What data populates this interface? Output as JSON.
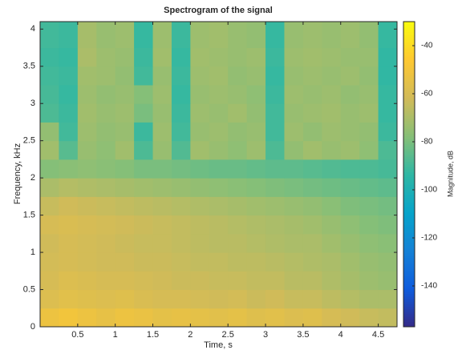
{
  "chart_data": {
    "type": "spectrogram",
    "title": "Spectrogram of the signal",
    "x_label": "Time, s",
    "y_label": "Frequency, kHz",
    "colorbar_label": "Magnitude, dB",
    "x": [
      0.125,
      0.375,
      0.625,
      0.875,
      1.125,
      1.375,
      1.625,
      1.875,
      2.125,
      2.375,
      2.625,
      2.875,
      3.125,
      3.375,
      3.625,
      3.875,
      4.125,
      4.375,
      4.625
    ],
    "y": [
      0.125,
      0.375,
      0.625,
      0.875,
      1.125,
      1.375,
      1.625,
      1.875,
      2.125,
      2.375,
      2.625,
      2.875,
      3.125,
      3.375,
      3.625,
      3.875
    ],
    "values": [
      [
        -52,
        -50,
        -52,
        -54,
        -52,
        -53,
        -55,
        -54,
        -55,
        -56,
        -55,
        -57,
        -56,
        -58,
        -57,
        -60,
        -62,
        -64,
        -65
      ],
      [
        -58,
        -56,
        -57,
        -58,
        -57,
        -59,
        -60,
        -60,
        -61,
        -62,
        -61,
        -63,
        -62,
        -64,
        -64,
        -66,
        -68,
        -70,
        -70
      ],
      [
        -60,
        -58,
        -59,
        -60,
        -60,
        -61,
        -62,
        -63,
        -63,
        -64,
        -64,
        -65,
        -65,
        -67,
        -67,
        -69,
        -71,
        -73,
        -74
      ],
      [
        -61,
        -60,
        -61,
        -62,
        -62,
        -63,
        -63,
        -64,
        -65,
        -65,
        -66,
        -66,
        -67,
        -68,
        -69,
        -70,
        -72,
        -74,
        -75
      ],
      [
        -62,
        -60,
        -61,
        -62,
        -63,
        -64,
        -64,
        -65,
        -66,
        -67,
        -67,
        -68,
        -69,
        -70,
        -70,
        -72,
        -74,
        -76,
        -77
      ],
      [
        -60,
        -59,
        -60,
        -61,
        -62,
        -63,
        -64,
        -65,
        -66,
        -67,
        -68,
        -69,
        -70,
        -71,
        -72,
        -74,
        -76,
        -78,
        -79
      ],
      [
        -64,
        -62,
        -63,
        -64,
        -65,
        -66,
        -67,
        -68,
        -69,
        -70,
        -71,
        -72,
        -73,
        -74,
        -75,
        -77,
        -79,
        -80,
        -81
      ],
      [
        -70,
        -68,
        -69,
        -70,
        -71,
        -72,
        -73,
        -74,
        -75,
        -76,
        -77,
        -78,
        -79,
        -80,
        -81,
        -82,
        -83,
        -84,
        -85
      ],
      [
        -78,
        -77,
        -76,
        -77,
        -78,
        -80,
        -80,
        -81,
        -82,
        -83,
        -83,
        -84,
        -85,
        -85,
        -86,
        -87,
        -88,
        -88,
        -89
      ],
      [
        -72,
        -86,
        -74,
        -76,
        -72,
        -88,
        -74,
        -87,
        -72,
        -74,
        -76,
        -73,
        -88,
        -75,
        -72,
        -74,
        -73,
        -76,
        -88
      ],
      [
        -75,
        -90,
        -73,
        -75,
        -74,
        -91,
        -73,
        -90,
        -74,
        -73,
        -75,
        -74,
        -90,
        -73,
        -75,
        -73,
        -74,
        -75,
        -91
      ],
      [
        -88,
        -91,
        -72,
        -74,
        -73,
        -80,
        -74,
        -91,
        -73,
        -74,
        -72,
        -75,
        -90,
        -74,
        -73,
        -72,
        -74,
        -73,
        -92
      ],
      [
        -89,
        -92,
        -73,
        -75,
        -74,
        -78,
        -73,
        -92,
        -74,
        -73,
        -74,
        -76,
        -91,
        -73,
        -74,
        -73,
        -75,
        -74,
        -92
      ],
      [
        -90,
        -91,
        -72,
        -73,
        -75,
        -90,
        -74,
        -91,
        -73,
        -72,
        -75,
        -74,
        -92,
        -74,
        -73,
        -74,
        -73,
        -75,
        -93
      ],
      [
        -91,
        -92,
        -70,
        -73,
        -74,
        -91,
        -72,
        -92,
        -72,
        -73,
        -74,
        -73,
        -91,
        -73,
        -72,
        -73,
        -74,
        -74,
        -93
      ],
      [
        -90,
        -91,
        -71,
        -74,
        -73,
        -92,
        -73,
        -91,
        -73,
        -72,
        -74,
        -75,
        -92,
        -74,
        -73,
        -74,
        -73,
        -75,
        -92
      ]
    ],
    "xlim": [
      0,
      4.75
    ],
    "xticks": [
      0.5,
      1,
      1.5,
      2,
      2.5,
      3,
      3.5,
      4,
      4.5
    ],
    "ylim": [
      0,
      4.1
    ],
    "yticks": [
      0,
      0.5,
      1,
      1.5,
      2,
      2.5,
      3,
      3.5,
      4
    ],
    "clim": [
      -157,
      -30
    ],
    "cticks": [
      -140,
      -120,
      -100,
      -80,
      -60,
      -40
    ],
    "colormap": [
      "#352a87",
      "#0f5cdd",
      "#1481d6",
      "#06a4ca",
      "#2eb7a4",
      "#87bf77",
      "#d1bb59",
      "#fec832",
      "#f9fb0e"
    ]
  }
}
